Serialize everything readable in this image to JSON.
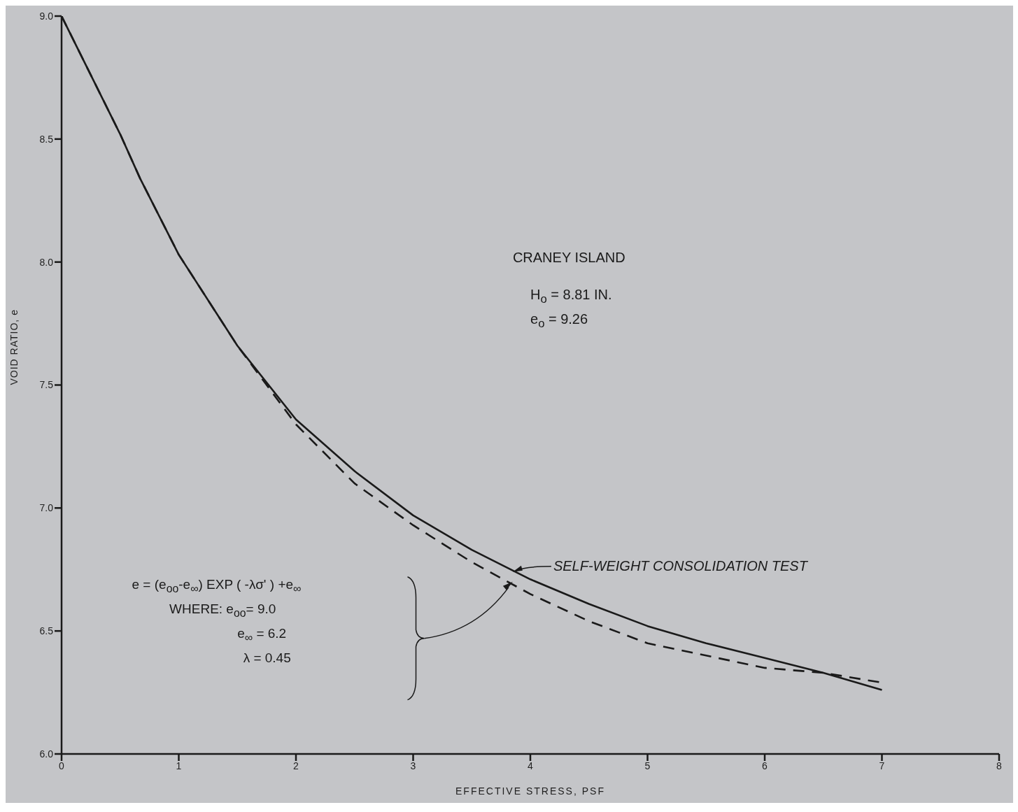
{
  "chart_data": {
    "type": "line",
    "xlabel": "EFFECTIVE STRESS, PSF",
    "ylabel": "VOID RATIO, e",
    "xlim": [
      0,
      8
    ],
    "xticks": [
      0,
      1,
      2,
      3,
      4,
      5,
      6,
      7,
      8
    ],
    "ylim": [
      6,
      9
    ],
    "yticks": [
      {
        "value": 6,
        "label": "6.0"
      },
      {
        "value": 6.5,
        "label": "6.5"
      },
      {
        "value": 7,
        "label": "7.0"
      },
      {
        "value": 7.5,
        "label": "7.5"
      },
      {
        "value": 8,
        "label": "8.0"
      },
      {
        "value": 8.5,
        "label": "8.5"
      },
      {
        "value": 9,
        "label": "9.0"
      }
    ],
    "grid": false,
    "legend": false,
    "marker": "none",
    "series": [
      {
        "color": "#1a1a1a",
        "line_style": "solid",
        "x": [
          0,
          0.5,
          0.67,
          1,
          1.5,
          2,
          2.5,
          3,
          3.5,
          4,
          4.5,
          5,
          5.5,
          6,
          6.5,
          7
        ],
        "values": [
          9.0,
          8.52,
          8.34,
          8.03,
          7.66,
          7.36,
          7.15,
          6.97,
          6.83,
          6.71,
          6.61,
          6.52,
          6.45,
          6.39,
          6.33,
          6.26
        ]
      },
      {
        "color": "#1a1a1a",
        "line_style": "dashed",
        "x": [
          0,
          0.5,
          0.67,
          1,
          1.5,
          2,
          2.5,
          3,
          3.5,
          4,
          4.5,
          5,
          5.5,
          6,
          6.5,
          7
        ],
        "values": [
          9.0,
          8.52,
          8.34,
          8.03,
          7.66,
          7.34,
          7.1,
          6.93,
          6.78,
          6.65,
          6.54,
          6.45,
          6.4,
          6.35,
          6.33,
          6.29
        ]
      }
    ],
    "annotations": [
      {
        "text": "SELF-WEIGHT CONSOLIDATION TEST",
        "x": 3.85,
        "y": 6.74
      },
      "CRANEY ISLAND",
      "H$_{o}$ = 8.81 IN.",
      "e$_{o}$ = 9.26",
      "e = (e$_{oo}$-e$_{∞}$) EXP ( -λσ' ) +e$_{∞}$",
      "WHERE: e$_{oo}$= 9.0",
      "e$_{∞}$ = 6.2",
      "λ = 0.45"
    ]
  }
}
